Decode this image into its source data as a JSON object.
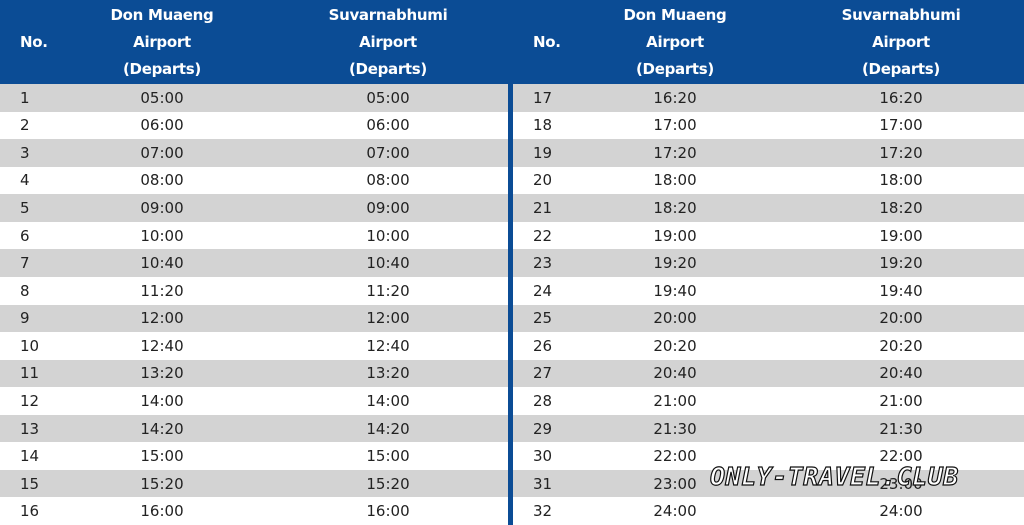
{
  "tables": [
    {
      "header": [
        [
          "No."
        ],
        [
          "Don Muaeng",
          "Airport",
          "(Departs)"
        ],
        [
          "Suvarnabhumi",
          "Airport",
          "(Departs)"
        ]
      ],
      "rows": [
        [
          1,
          "05:00",
          "05:00"
        ],
        [
          2,
          "06:00",
          "06:00"
        ],
        [
          3,
          "07:00",
          "07:00"
        ],
        [
          4,
          "08:00",
          "08:00"
        ],
        [
          5,
          "09:00",
          "09:00"
        ],
        [
          6,
          "10:00",
          "10:00"
        ],
        [
          7,
          "10:40",
          "10:40"
        ],
        [
          8,
          "11:20",
          "11:20"
        ],
        [
          9,
          "12:00",
          "12:00"
        ],
        [
          10,
          "12:40",
          "12:40"
        ],
        [
          11,
          "13:20",
          "13:20"
        ],
        [
          12,
          "14:00",
          "14:00"
        ],
        [
          13,
          "14:20",
          "14:20"
        ],
        [
          14,
          "15:00",
          "15:00"
        ],
        [
          15,
          "15:20",
          "15:20"
        ],
        [
          16,
          "16:00",
          "16:00"
        ]
      ]
    },
    {
      "header": [
        [
          "No."
        ],
        [
          "Don Muaeng",
          "Airport",
          "(Departs)"
        ],
        [
          "Suvarnabhumi",
          "Airport",
          "(Departs)"
        ]
      ],
      "rows": [
        [
          17,
          "16:20",
          "16:20"
        ],
        [
          18,
          "17:00",
          "17:00"
        ],
        [
          19,
          "17:20",
          "17:20"
        ],
        [
          20,
          "18:00",
          "18:00"
        ],
        [
          21,
          "18:20",
          "18:20"
        ],
        [
          22,
          "19:00",
          "19:00"
        ],
        [
          23,
          "19:20",
          "19:20"
        ],
        [
          24,
          "19:40",
          "19:40"
        ],
        [
          25,
          "20:00",
          "20:00"
        ],
        [
          26,
          "20:20",
          "20:20"
        ],
        [
          27,
          "20:40",
          "20:40"
        ],
        [
          28,
          "21:00",
          "21:00"
        ],
        [
          29,
          "21:30",
          "21:30"
        ],
        [
          30,
          "22:00",
          "22:00"
        ],
        [
          31,
          "23:00",
          "23:00"
        ],
        [
          32,
          "24:00",
          "24:00"
        ]
      ]
    }
  ],
  "watermark": "ONLY-TRAVEL.CLUB"
}
